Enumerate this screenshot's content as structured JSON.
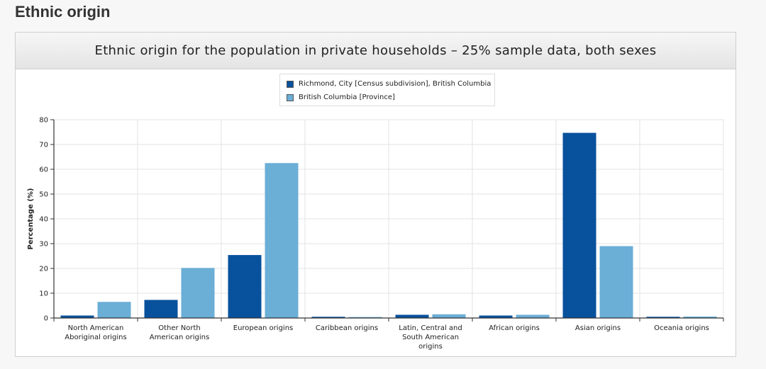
{
  "page": {
    "section_title": "Ethnic origin"
  },
  "chart_data": {
    "type": "bar",
    "title": "Ethnic origin for the population in private households – 25% sample data, both sexes",
    "xlabel": "",
    "ylabel": "Percentage (%)",
    "ylim": [
      0,
      80
    ],
    "yticks": [
      0,
      10,
      20,
      30,
      40,
      50,
      60,
      70,
      80
    ],
    "grid": true,
    "legend_position": "top-center",
    "categories": [
      [
        "North American",
        "Aboriginal origins"
      ],
      [
        "Other North",
        "American origins"
      ],
      [
        "European origins"
      ],
      [
        "Caribbean origins"
      ],
      [
        "Latin, Central and",
        "South American",
        "origins"
      ],
      [
        "African origins"
      ],
      [
        "Asian origins"
      ],
      [
        "Oceania origins"
      ]
    ],
    "series": [
      {
        "name": "Richmond, City [Census subdivision], British Columbia",
        "color": "#08519c",
        "values": [
          1.0,
          7.3,
          25.4,
          0.5,
          1.3,
          1.0,
          74.7,
          0.5
        ]
      },
      {
        "name": "British Columbia [Province]",
        "color": "#6baed6",
        "values": [
          6.5,
          20.2,
          62.5,
          0.4,
          1.5,
          1.3,
          29.0,
          0.6
        ]
      }
    ]
  }
}
